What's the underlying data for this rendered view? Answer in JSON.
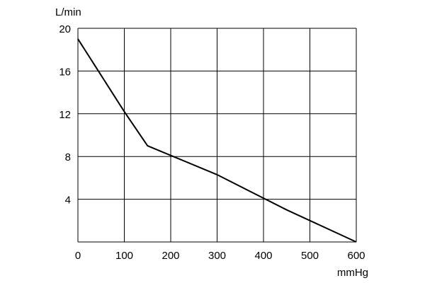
{
  "colors": {
    "line": "#000000",
    "grid": "#000000",
    "background": "#ffffff"
  },
  "chart_data": {
    "type": "line",
    "title": "",
    "xlabel": "mmHg",
    "ylabel": "L/min",
    "xlim": [
      0,
      600
    ],
    "ylim": [
      0,
      20
    ],
    "x_ticks": [
      0,
      100,
      200,
      300,
      400,
      500,
      600
    ],
    "y_ticks": [
      4,
      8,
      12,
      16,
      20
    ],
    "x_tick_labels": [
      "0",
      "100",
      "200",
      "300",
      "400",
      "500",
      "600"
    ],
    "y_tick_labels": [
      "4",
      "8",
      "12",
      "16",
      "20"
    ],
    "grid": true,
    "series": [
      {
        "x": [
          0,
          100,
          150,
          200,
          300,
          400,
          450,
          600
        ],
        "y": [
          19,
          12.2,
          9,
          8.1,
          6.3,
          4.1,
          3.0,
          0
        ]
      }
    ]
  }
}
